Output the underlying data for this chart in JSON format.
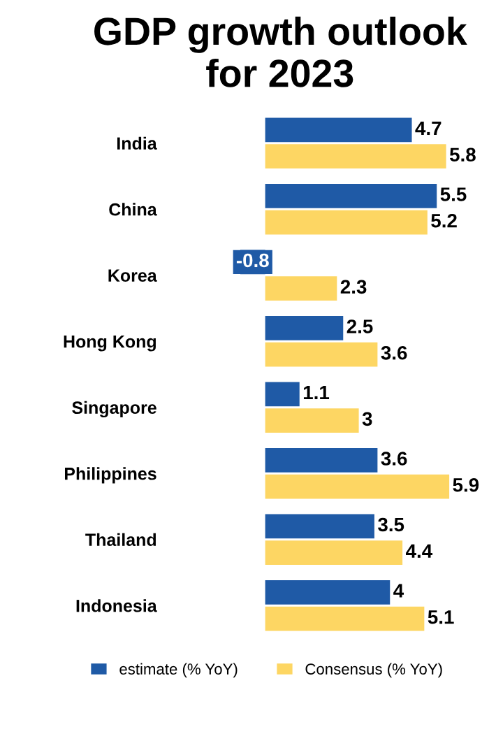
{
  "chart_data": {
    "type": "bar",
    "orientation": "horizontal",
    "title": "GDP growth outlook\nfor 2023",
    "categories": [
      "India",
      "China",
      "Korea",
      "Hong Kong",
      "Singapore",
      "Philippines",
      "Thailand",
      "Indonesia"
    ],
    "series": [
      {
        "name": "estimate (% YoY)",
        "color": "#1f5aa6",
        "values": [
          4.7,
          5.5,
          -0.8,
          2.5,
          1.1,
          3.6,
          3.5,
          4
        ]
      },
      {
        "name": "Consensus (% YoY)",
        "color": "#fdd663",
        "values": [
          5.8,
          5.2,
          2.3,
          3.6,
          3,
          5.9,
          4.4,
          5.1
        ]
      }
    ],
    "data_labels": true,
    "tick_labels": "y",
    "legend": "bottom",
    "grid": false
  }
}
